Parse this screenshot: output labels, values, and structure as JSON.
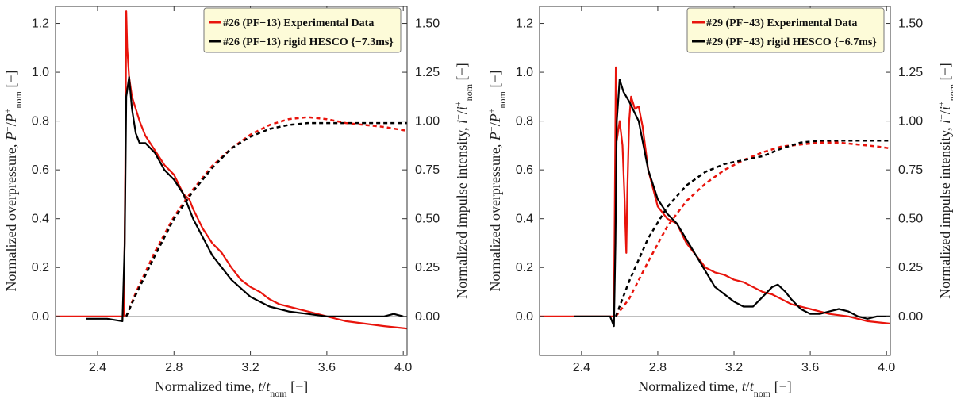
{
  "chart_data": [
    {
      "type": "line",
      "xlabel": "Normalized time, t/t_nom [−]",
      "ylabel_left": "Normalized overpressure, P⁺/P⁺_nom [−]",
      "ylabel_right": "Normalized impulse intensity, i⁺/i⁺_nom [−]",
      "xlim": [
        2.18,
        4.02
      ],
      "ylim_left": [
        -0.16,
        1.27
      ],
      "ylim_right": [
        -0.2,
        1.5875
      ],
      "x_ticks": [
        "2.4",
        "2.8",
        "3.2",
        "3.6",
        "4.0"
      ],
      "y_ticks_left": [
        "0.0",
        "0.2",
        "0.4",
        "0.6",
        "0.8",
        "1.0",
        "1.2"
      ],
      "y_ticks_right": [
        "0.00",
        "0.25",
        "0.50",
        "0.75",
        "1.00",
        "1.25",
        "1.50"
      ],
      "legend": {
        "position": "top-right",
        "entries": [
          {
            "label": "#26 (PF−13) Experimental Data",
            "color": "#e8140c"
          },
          {
            "label": "#26 (PF−13) rigid HESCO {−7.3ms}",
            "color": "#000000"
          }
        ]
      },
      "series": [
        {
          "name": "#26 (PF−13) Experimental Data",
          "axis": "left",
          "color": "#e8140c",
          "style": "solid",
          "x": [
            2.18,
            2.3,
            2.45,
            2.538,
            2.545,
            2.55,
            2.555,
            2.565,
            2.58,
            2.6,
            2.62,
            2.65,
            2.7,
            2.75,
            2.8,
            2.85,
            2.88,
            2.9,
            2.95,
            3.0,
            3.05,
            3.1,
            3.15,
            3.2,
            3.25,
            3.3,
            3.35,
            3.4,
            3.5,
            3.6,
            3.7,
            3.8,
            3.9,
            4.02
          ],
          "y": [
            0.0,
            0.0,
            0.0,
            0.0,
            0.6,
            1.25,
            1.1,
            0.98,
            0.9,
            0.85,
            0.8,
            0.74,
            0.68,
            0.62,
            0.58,
            0.5,
            0.48,
            0.44,
            0.36,
            0.3,
            0.26,
            0.2,
            0.15,
            0.12,
            0.1,
            0.07,
            0.05,
            0.04,
            0.02,
            0.0,
            -0.02,
            -0.03,
            -0.04,
            -0.05
          ]
        },
        {
          "name": "#26 (PF−13) rigid HESCO {−7.3ms}",
          "axis": "left",
          "color": "#000000",
          "style": "solid",
          "x": [
            2.34,
            2.45,
            2.53,
            2.542,
            2.55,
            2.565,
            2.58,
            2.6,
            2.62,
            2.65,
            2.7,
            2.75,
            2.8,
            2.85,
            2.9,
            3.0,
            3.1,
            3.2,
            3.3,
            3.4,
            3.5,
            3.6,
            3.7,
            3.8,
            3.9,
            3.95,
            4.0
          ],
          "y": [
            -0.01,
            -0.01,
            -0.02,
            0.3,
            0.9,
            0.98,
            0.85,
            0.75,
            0.71,
            0.71,
            0.67,
            0.6,
            0.56,
            0.5,
            0.4,
            0.25,
            0.15,
            0.08,
            0.04,
            0.02,
            0.01,
            0.0,
            0.0,
            0.0,
            0.0,
            0.01,
            0.0
          ]
        },
        {
          "name": "#26 (PF−13) Experimental Data",
          "axis": "right",
          "color": "#e8140c",
          "style": "dashed",
          "x": [
            2.55,
            2.6,
            2.7,
            2.8,
            2.9,
            3.0,
            3.1,
            3.2,
            3.3,
            3.4,
            3.5,
            3.6,
            3.7,
            3.8,
            3.9,
            4.02
          ],
          "y": [
            0.0,
            0.12,
            0.33,
            0.51,
            0.65,
            0.77,
            0.86,
            0.93,
            0.98,
            1.01,
            1.02,
            1.01,
            0.99,
            0.98,
            0.97,
            0.95
          ]
        },
        {
          "name": "#26 (PF−13) rigid HESCO {−7.3ms}",
          "axis": "right",
          "color": "#000000",
          "style": "dashed",
          "x": [
            2.55,
            2.6,
            2.7,
            2.8,
            2.9,
            3.0,
            3.1,
            3.2,
            3.3,
            3.4,
            3.5,
            3.6,
            3.7,
            3.8,
            3.9,
            4.02
          ],
          "y": [
            0.0,
            0.11,
            0.31,
            0.5,
            0.64,
            0.76,
            0.86,
            0.92,
            0.96,
            0.98,
            0.99,
            0.99,
            0.99,
            0.99,
            0.99,
            0.99
          ]
        }
      ]
    },
    {
      "type": "line",
      "xlabel": "Normalized time, t/t_nom [−]",
      "ylabel_left": "Normalized overpressure, P⁺/P⁺_nom [−]",
      "ylabel_right": "Normalized impulse intensity, i⁺/i⁺_nom [−]",
      "xlim": [
        2.18,
        4.02
      ],
      "ylim_left": [
        -0.16,
        1.27
      ],
      "ylim_right": [
        -0.2,
        1.5875
      ],
      "x_ticks": [
        "2.4",
        "2.8",
        "3.2",
        "3.6",
        "4.0"
      ],
      "y_ticks_left": [
        "0.0",
        "0.2",
        "0.4",
        "0.6",
        "0.8",
        "1.0",
        "1.2"
      ],
      "y_ticks_right": [
        "0.00",
        "0.25",
        "0.50",
        "0.75",
        "1.00",
        "1.25",
        "1.50"
      ],
      "legend": {
        "position": "top-right",
        "entries": [
          {
            "label": "#29 (PF−43) Experimental Data",
            "color": "#e8140c"
          },
          {
            "label": "#29 (PF−43) rigid HESCO {−6.7ms}",
            "color": "#000000"
          }
        ]
      },
      "series": [
        {
          "name": "#29 (PF−43) Experimental Data",
          "axis": "left",
          "color": "#e8140c",
          "style": "solid",
          "x": [
            2.18,
            2.3,
            2.45,
            2.57,
            2.575,
            2.58,
            2.585,
            2.6,
            2.615,
            2.625,
            2.635,
            2.64,
            2.65,
            2.66,
            2.68,
            2.7,
            2.72,
            2.75,
            2.8,
            2.85,
            2.9,
            2.95,
            3.0,
            3.05,
            3.1,
            3.15,
            3.2,
            3.25,
            3.3,
            3.35,
            3.4,
            3.45,
            3.5,
            3.6,
            3.7,
            3.8,
            3.9,
            4.02
          ],
          "y": [
            0.0,
            0.0,
            0.0,
            0.0,
            0.5,
            1.02,
            0.72,
            0.8,
            0.7,
            0.5,
            0.26,
            0.5,
            0.8,
            0.9,
            0.85,
            0.86,
            0.78,
            0.6,
            0.45,
            0.4,
            0.38,
            0.3,
            0.25,
            0.2,
            0.18,
            0.17,
            0.15,
            0.14,
            0.12,
            0.1,
            0.09,
            0.07,
            0.05,
            0.03,
            0.01,
            0.0,
            -0.02,
            -0.03
          ]
        },
        {
          "name": "#29 (PF−43) rigid HESCO {−6.7ms}",
          "axis": "left",
          "color": "#000000",
          "style": "solid",
          "x": [
            2.36,
            2.45,
            2.55,
            2.57,
            2.578,
            2.585,
            2.6,
            2.62,
            2.65,
            2.7,
            2.75,
            2.8,
            2.85,
            2.9,
            3.0,
            3.1,
            3.2,
            3.25,
            3.3,
            3.35,
            3.4,
            3.43,
            3.47,
            3.5,
            3.55,
            3.6,
            3.65,
            3.7,
            3.75,
            3.8,
            3.85,
            3.9,
            3.95,
            4.02
          ],
          "y": [
            0.0,
            0.0,
            0.0,
            -0.04,
            0.3,
            0.8,
            0.97,
            0.92,
            0.88,
            0.8,
            0.6,
            0.48,
            0.42,
            0.38,
            0.25,
            0.12,
            0.06,
            0.04,
            0.04,
            0.08,
            0.12,
            0.13,
            0.1,
            0.07,
            0.03,
            0.01,
            0.01,
            0.02,
            0.03,
            0.02,
            0.0,
            -0.01,
            0.0,
            0.0
          ]
        },
        {
          "name": "#29 (PF−43) Experimental Data",
          "axis": "right",
          "color": "#e8140c",
          "style": "dashed",
          "x": [
            2.58,
            2.65,
            2.75,
            2.85,
            2.95,
            3.05,
            3.15,
            3.25,
            3.35,
            3.45,
            3.55,
            3.65,
            3.75,
            3.85,
            3.95,
            4.02
          ],
          "y": [
            0.0,
            0.09,
            0.28,
            0.46,
            0.59,
            0.68,
            0.75,
            0.8,
            0.84,
            0.87,
            0.88,
            0.89,
            0.89,
            0.88,
            0.87,
            0.86
          ]
        },
        {
          "name": "#29 (PF−43) rigid HESCO {−6.7ms}",
          "axis": "right",
          "color": "#000000",
          "style": "dashed",
          "x": [
            2.58,
            2.65,
            2.75,
            2.85,
            2.95,
            3.05,
            3.15,
            3.25,
            3.35,
            3.45,
            3.55,
            3.65,
            3.75,
            3.85,
            3.95,
            4.02
          ],
          "y": [
            0.0,
            0.18,
            0.4,
            0.56,
            0.67,
            0.74,
            0.78,
            0.8,
            0.82,
            0.86,
            0.89,
            0.9,
            0.9,
            0.9,
            0.9,
            0.9
          ]
        }
      ]
    }
  ]
}
